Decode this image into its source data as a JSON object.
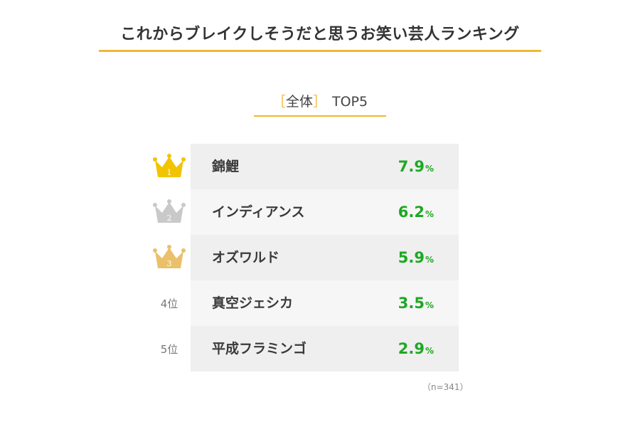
{
  "title": "これからブレイクしそうだと思うお笑い芸人ランキング",
  "subtitle": {
    "bracket_open": "［",
    "label": "全体",
    "bracket_close": "］",
    "top": "TOP5"
  },
  "colors": {
    "accent": "#f2b632",
    "value": "#1ea824",
    "gold": "#f2c400",
    "silver": "#c9c9c9",
    "bronze": "#eac06a"
  },
  "chart_data": {
    "type": "table",
    "unit": "%",
    "rows": [
      {
        "rank": "1",
        "icon": "gold-crown-icon",
        "name": "錦鯉",
        "value": "7.9"
      },
      {
        "rank": "2",
        "icon": "silver-crown-icon",
        "name": "インディアンス",
        "value": "6.2"
      },
      {
        "rank": "3",
        "icon": "bronze-crown-icon",
        "name": "オズワルド",
        "value": "5.9"
      },
      {
        "rank": "4位",
        "icon": null,
        "name": "真空ジェシカ",
        "value": "3.5"
      },
      {
        "rank": "5位",
        "icon": null,
        "name": "平成フラミンゴ",
        "value": "2.9"
      }
    ],
    "note": "（n=341）"
  }
}
